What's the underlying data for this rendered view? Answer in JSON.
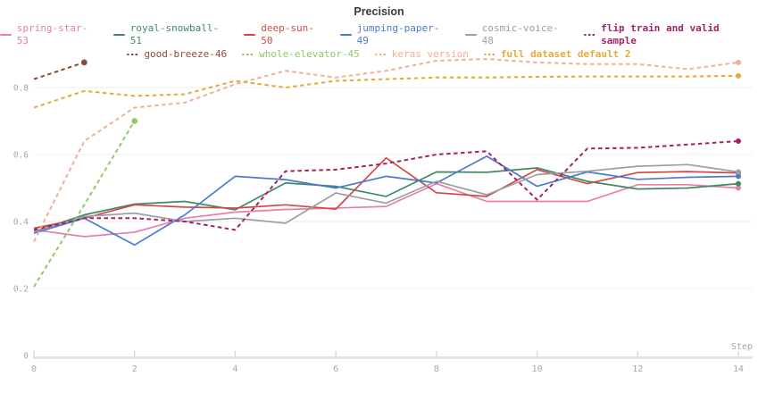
{
  "title": "Precision",
  "axes": {
    "x_label": "Step",
    "x_tick_labels": [
      "0",
      "2",
      "4",
      "6",
      "8",
      "10",
      "12",
      "14"
    ],
    "y_tick_labels": [
      "0",
      "0.2",
      "0.4",
      "0.6",
      "0.8"
    ],
    "y_gridline_values": [
      0.2,
      0.4,
      0.6,
      0.8
    ]
  },
  "colors": {
    "grid": "#ededed",
    "axis_bar": "#e4e4e6",
    "axis_tick": "#d9d9dc",
    "tick_text": "#a4a8ae",
    "title_text": "#3b3b3f",
    "background": "#ffffff"
  },
  "chart_data": {
    "type": "line",
    "title": "Precision",
    "xlabel": "Step",
    "ylabel": "",
    "x": [
      0,
      1,
      2,
      3,
      4,
      5,
      6,
      7,
      8,
      9,
      10,
      11,
      12,
      13,
      14
    ],
    "xlim": [
      0,
      14
    ],
    "ylim": [
      0,
      0.92
    ],
    "grid": "horizontal",
    "legend_position": "top",
    "series": [
      {
        "name": "spring-star-53",
        "color": "#ea7fa5",
        "style": "solid",
        "row": 1,
        "bold": false,
        "values": [
          0.375,
          0.355,
          0.368,
          0.41,
          0.428,
          0.436,
          0.44,
          0.445,
          0.513,
          0.46,
          0.46,
          0.46,
          0.51,
          0.51,
          0.5
        ]
      },
      {
        "name": "royal-snowball-51",
        "color": "#418a5e",
        "style": "solid",
        "row": 1,
        "bold": false,
        "values": [
          0.37,
          0.42,
          0.452,
          0.46,
          0.435,
          0.515,
          0.505,
          0.475,
          0.548,
          0.547,
          0.56,
          0.52,
          0.497,
          0.5,
          0.513
        ]
      },
      {
        "name": "deep-sun-50",
        "color": "#cf4a47",
        "style": "solid",
        "row": 1,
        "bold": false,
        "values": [
          0.38,
          0.41,
          0.45,
          0.443,
          0.44,
          0.45,
          0.437,
          0.59,
          0.486,
          0.475,
          0.555,
          0.513,
          0.546,
          0.549,
          0.545
        ]
      },
      {
        "name": "jumping-paper-49",
        "color": "#4a7ad2",
        "style": "solid",
        "row": 1,
        "bold": false,
        "values": [
          0.365,
          0.41,
          0.33,
          0.42,
          0.535,
          0.525,
          0.5,
          0.535,
          0.515,
          0.595,
          0.505,
          0.548,
          0.526,
          0.532,
          0.535
        ]
      },
      {
        "name": "cosmic-voice-48",
        "color": "#9b9fa3",
        "style": "solid",
        "row": 1,
        "bold": false,
        "values": [
          0.37,
          0.415,
          0.425,
          0.4,
          0.41,
          0.395,
          0.485,
          0.455,
          0.52,
          0.48,
          0.54,
          0.55,
          0.565,
          0.57,
          0.548
        ]
      },
      {
        "name": "flip train and valid sample",
        "color": "#a62168",
        "style": "dashed",
        "row": 1,
        "bold": true,
        "values": [
          0.375,
          0.41,
          0.41,
          0.4,
          0.375,
          0.55,
          0.555,
          0.573,
          0.6,
          0.61,
          0.465,
          0.618,
          0.62,
          0.63,
          0.64
        ]
      },
      {
        "name": "good-breeze-46",
        "color": "#8c4a39",
        "style": "dashed",
        "row": 2,
        "bold": false,
        "values": [
          0.825,
          0.875
        ]
      },
      {
        "name": "whole-elevator-45",
        "color": "#90c869",
        "style": "dashed",
        "row": 2,
        "bold": false,
        "values": [
          0.205,
          0.45,
          0.7
        ]
      },
      {
        "name": "keras version",
        "color": "#f3ae93",
        "style": "dashed",
        "row": 2,
        "bold": false,
        "values": [
          0.34,
          0.64,
          0.74,
          0.755,
          0.81,
          0.85,
          0.83,
          0.85,
          0.88,
          0.885,
          0.875,
          0.87,
          0.87,
          0.855,
          0.875
        ]
      },
      {
        "name": "full dataset default 2",
        "color": "#e8a93c",
        "style": "dashed",
        "row": 2,
        "bold": true,
        "values": [
          0.74,
          0.79,
          0.775,
          0.78,
          0.82,
          0.8,
          0.82,
          0.825,
          0.83,
          0.83,
          0.832,
          0.833,
          0.833,
          0.833,
          0.835
        ]
      }
    ]
  }
}
